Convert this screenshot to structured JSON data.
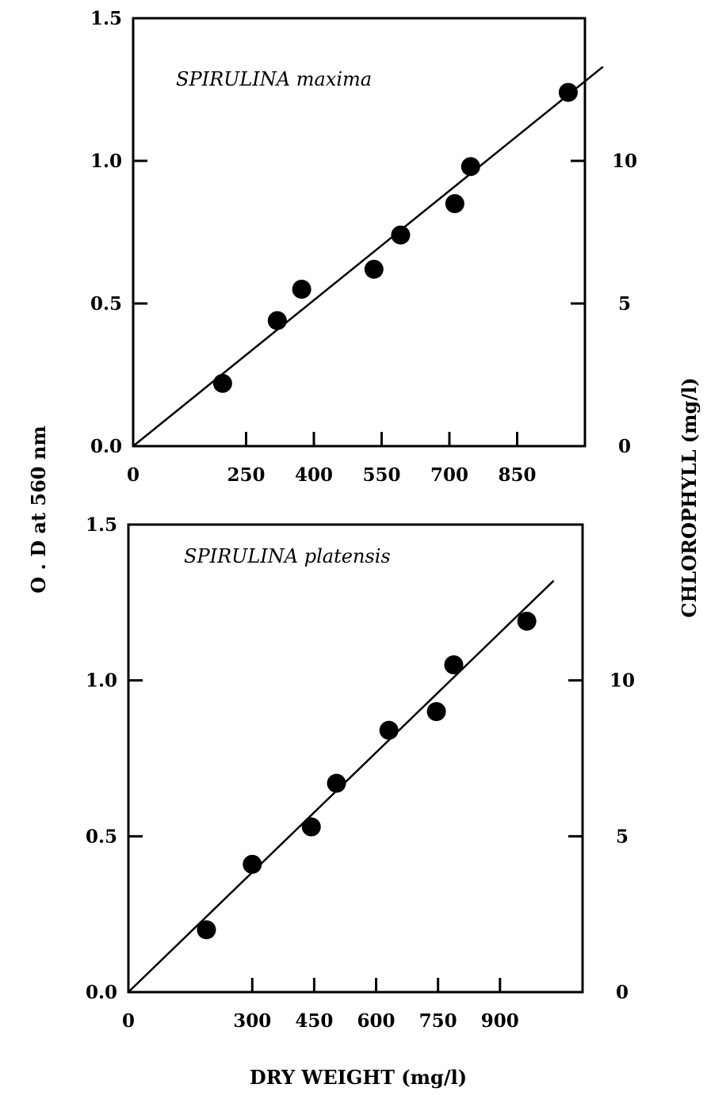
{
  "figure": {
    "shared_ylabel": "O . D  at 560 nm",
    "shared_y2label": "CHLOROPHYLL  (mg/l)",
    "shared_xlabel": "DRY WEIGHT (mg/l)"
  },
  "chart_data": [
    {
      "type": "scatter",
      "title": "SPIRULINA  maxima",
      "xlabel": "DRY WEIGHT (mg/l)",
      "ylabel": "O . D  at 560 nm",
      "y2label": "CHLOROPHYLL  (mg/l)",
      "xlim": [
        0,
        1000
      ],
      "ylim": [
        0.0,
        1.5
      ],
      "y2lim": [
        0,
        15
      ],
      "xticks": [
        0,
        250,
        400,
        550,
        700,
        850
      ],
      "xtick_labels": [
        "0",
        "250",
        "400",
        "550",
        "700",
        "850"
      ],
      "yticks": [
        0.0,
        0.5,
        1.0,
        1.5
      ],
      "ytick_labels": [
        "0.0",
        "0.5",
        "1.0",
        "1.5"
      ],
      "y2ticks": [
        0,
        5,
        10
      ],
      "y2tick_labels": [
        "0",
        "5",
        "10"
      ],
      "grid": false,
      "series": [
        {
          "points": [
            {
              "x": 198,
              "y": 0.22
            },
            {
              "x": 319,
              "y": 0.44
            },
            {
              "x": 373,
              "y": 0.55
            },
            {
              "x": 533,
              "y": 0.62
            },
            {
              "x": 592,
              "y": 0.74
            },
            {
              "x": 712,
              "y": 0.85
            },
            {
              "x": 747,
              "y": 0.98
            },
            {
              "x": 963,
              "y": 1.24
            }
          ]
        }
      ],
      "fit_line": {
        "x": [
          0,
          1040
        ],
        "y": [
          0.0,
          1.33
        ]
      }
    },
    {
      "type": "scatter",
      "title": "SPIRULINA platensis",
      "xlabel": "DRY WEIGHT (mg/l)",
      "ylabel": "O . D  at 560 nm",
      "y2label": "CHLOROPHYLL  (mg/l)",
      "xlim": [
        0,
        1100
      ],
      "ylim": [
        0.0,
        1.5
      ],
      "y2lim": [
        0,
        15
      ],
      "xticks": [
        0,
        300,
        450,
        600,
        750,
        900
      ],
      "xtick_labels": [
        "0",
        "300",
        "450",
        "600",
        "750",
        "900"
      ],
      "yticks": [
        0.0,
        0.5,
        1.0,
        1.5
      ],
      "ytick_labels": [
        "0.0",
        "0.5",
        "1.0",
        "1.5"
      ],
      "y2ticks": [
        0,
        5,
        10
      ],
      "y2tick_labels": [
        "0",
        "5",
        "10"
      ],
      "grid": false,
      "series": [
        {
          "points": [
            {
              "x": 189,
              "y": 0.2
            },
            {
              "x": 300,
              "y": 0.41
            },
            {
              "x": 443,
              "y": 0.53
            },
            {
              "x": 504,
              "y": 0.67
            },
            {
              "x": 631,
              "y": 0.84
            },
            {
              "x": 746,
              "y": 0.9
            },
            {
              "x": 788,
              "y": 1.05
            },
            {
              "x": 965,
              "y": 1.19
            }
          ]
        }
      ],
      "fit_line": {
        "x": [
          0,
          1030
        ],
        "y": [
          0.0,
          1.32
        ]
      }
    }
  ]
}
